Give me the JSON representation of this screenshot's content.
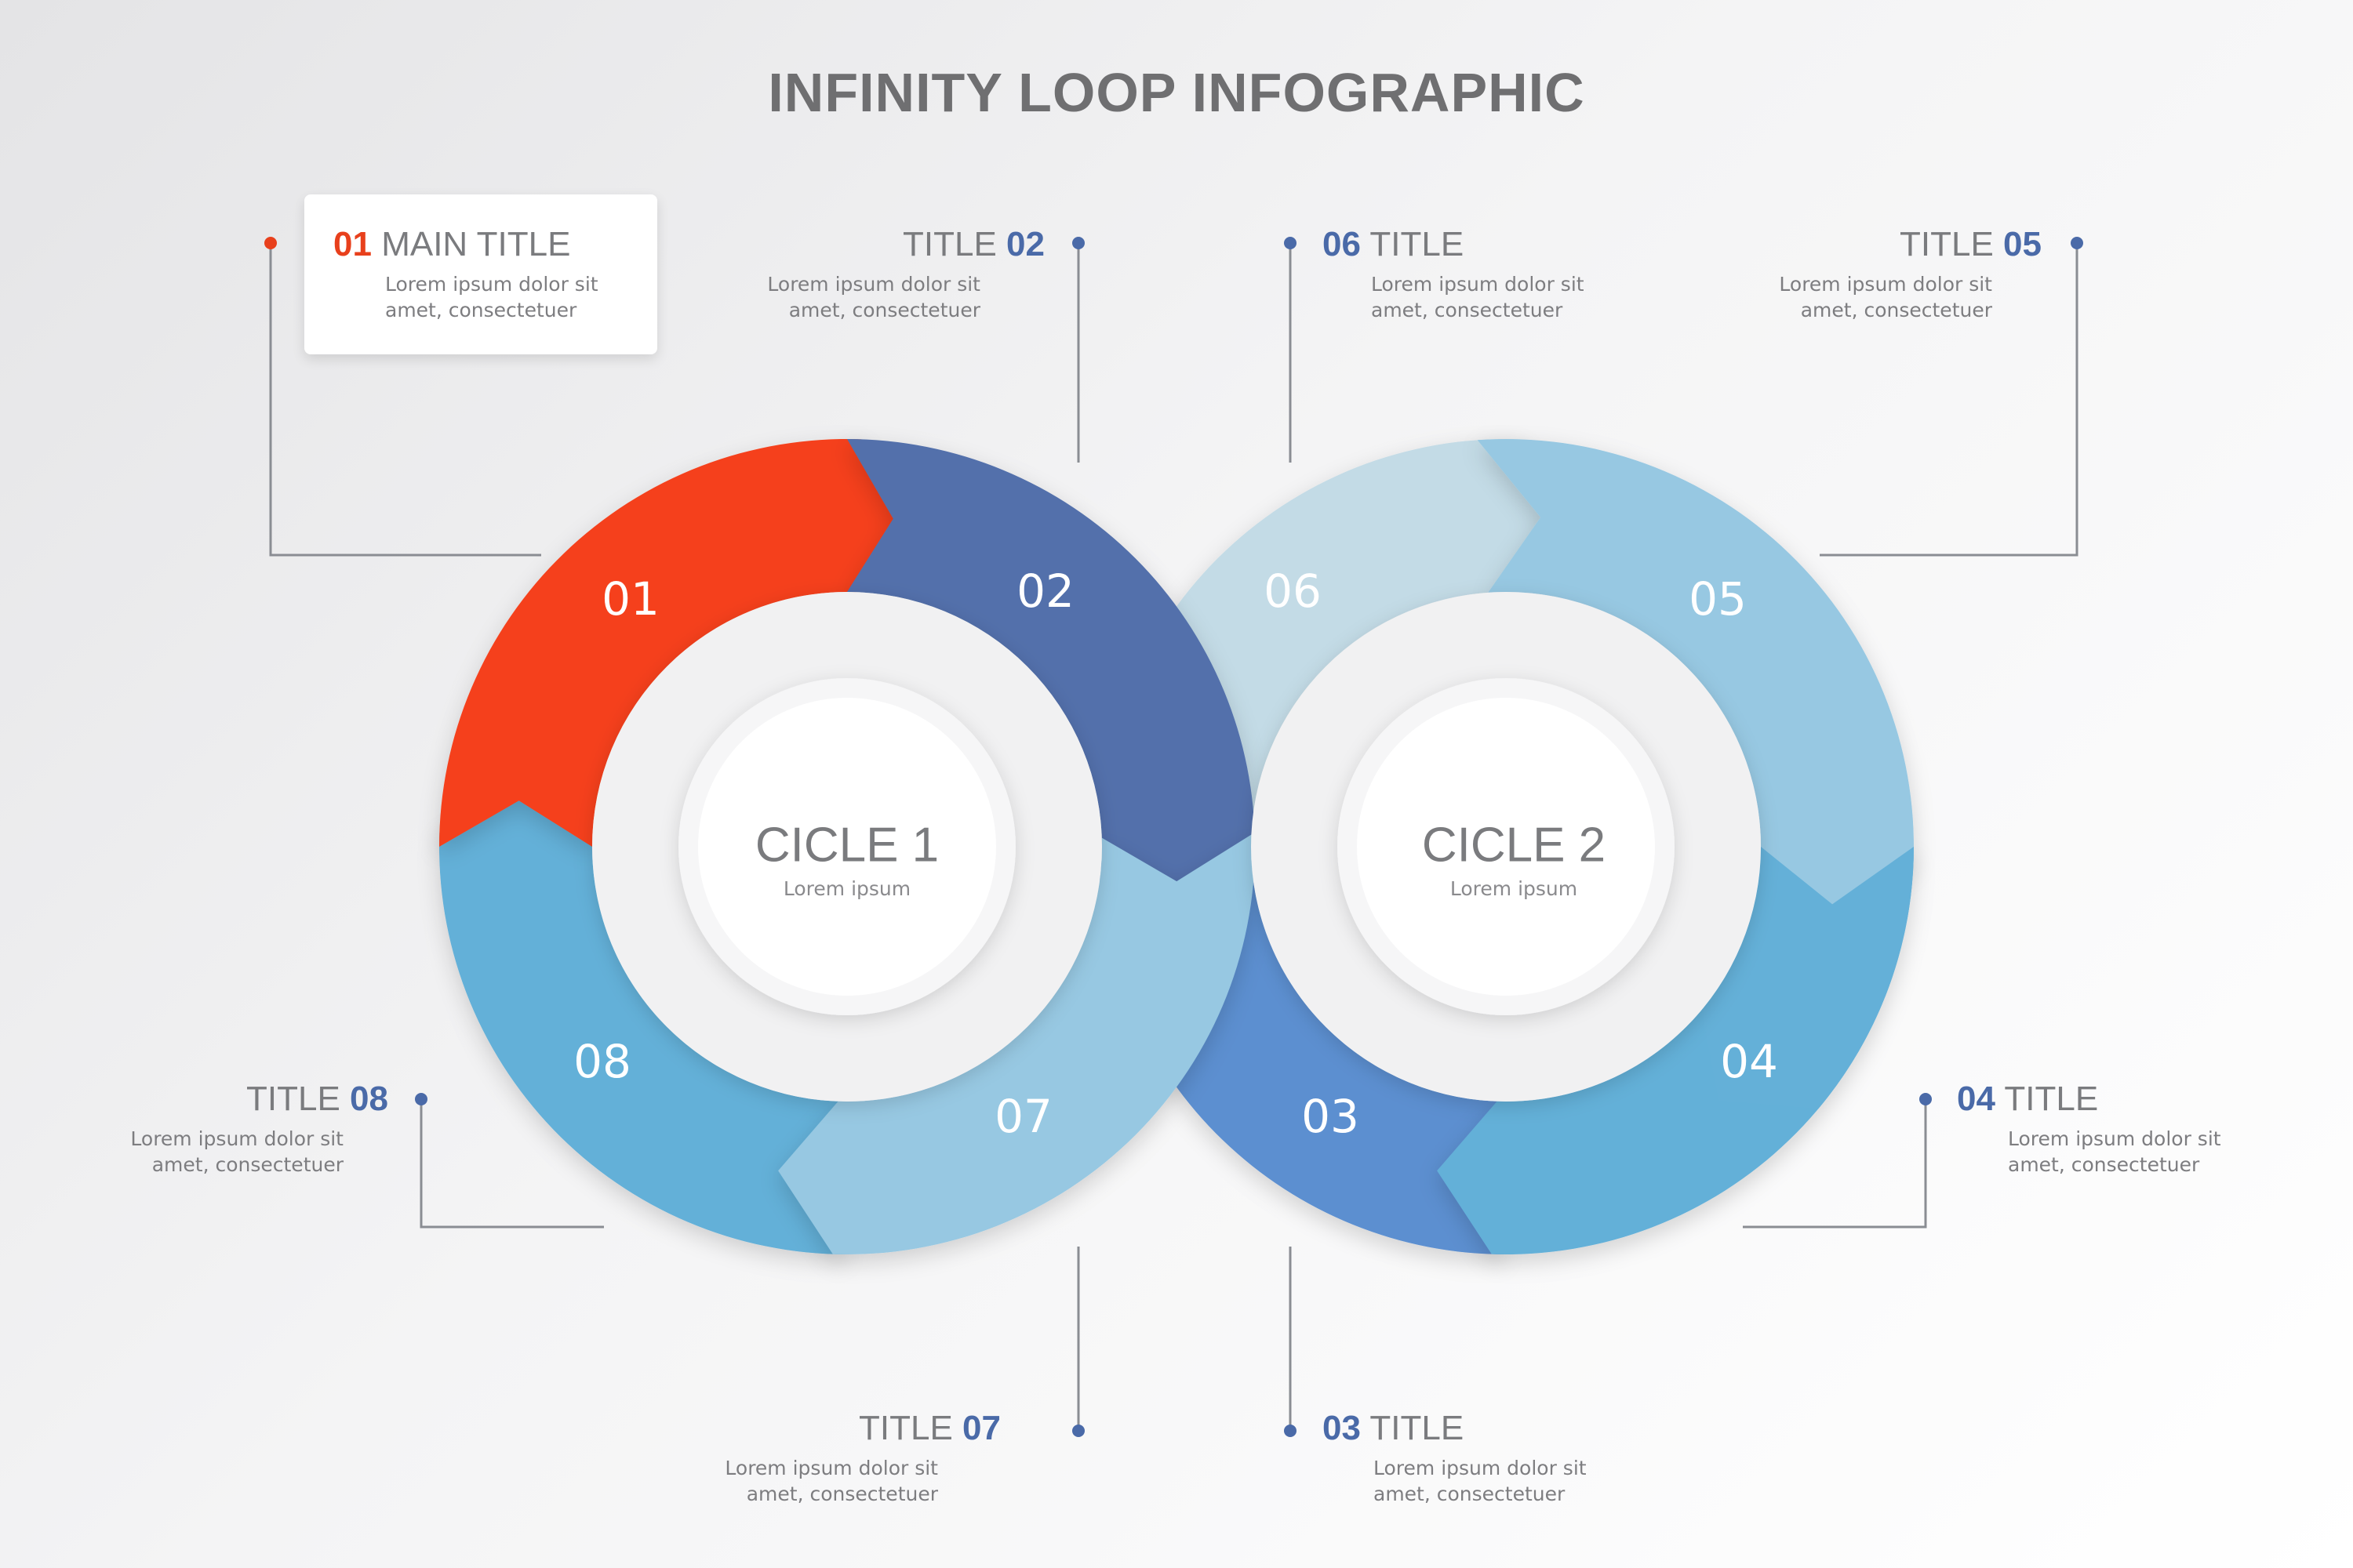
{
  "title": "INFINITY LOOP INFOGRAPHIC",
  "colors": {
    "orange": "#f5411a",
    "dark_blue": "#5270ab",
    "mid_blue": "#5b8fd0",
    "blue": "#64b0d8",
    "light_blue": "#97c8e2",
    "pale_blue": "#c3dbe6",
    "accent_title": "#4a6aa8"
  },
  "segments": {
    "s01": "01",
    "s02": "02",
    "s03": "03",
    "s04": "04",
    "s05": "05",
    "s06": "06",
    "s07": "07",
    "s08": "08"
  },
  "circles": [
    {
      "title": "CICLE 1",
      "subtitle": "Lorem ipsum"
    },
    {
      "title": "CICLE 2",
      "subtitle": "Lorem ipsum"
    }
  ],
  "callouts": {
    "c01": {
      "num": "01",
      "label": "MAIN TITLE",
      "text": [
        "Lorem ipsum dolor sit",
        "amet, consectetuer"
      ]
    },
    "c02": {
      "num": "02",
      "label": "TITLE",
      "text": [
        "Lorem ipsum dolor sit",
        "amet, consectetuer"
      ]
    },
    "c03": {
      "num": "03",
      "label": "TITLE",
      "text": [
        "Lorem ipsum dolor sit",
        "amet, consectetuer"
      ]
    },
    "c04": {
      "num": "04",
      "label": "TITLE",
      "text": [
        "Lorem ipsum dolor sit",
        "amet, consectetuer"
      ]
    },
    "c05": {
      "num": "05",
      "label": "TITLE",
      "text": [
        "Lorem ipsum dolor sit",
        "amet, consectetuer"
      ]
    },
    "c06": {
      "num": "06",
      "label": "TITLE",
      "text": [
        "Lorem ipsum dolor sit",
        "amet, consectetuer"
      ]
    },
    "c07": {
      "num": "07",
      "label": "TITLE",
      "text": [
        "Lorem ipsum dolor sit",
        "amet, consectetuer"
      ]
    },
    "c08": {
      "num": "08",
      "label": "TITLE",
      "text": [
        "Lorem ipsum dolor sit",
        "amet, consectetuer"
      ]
    }
  }
}
